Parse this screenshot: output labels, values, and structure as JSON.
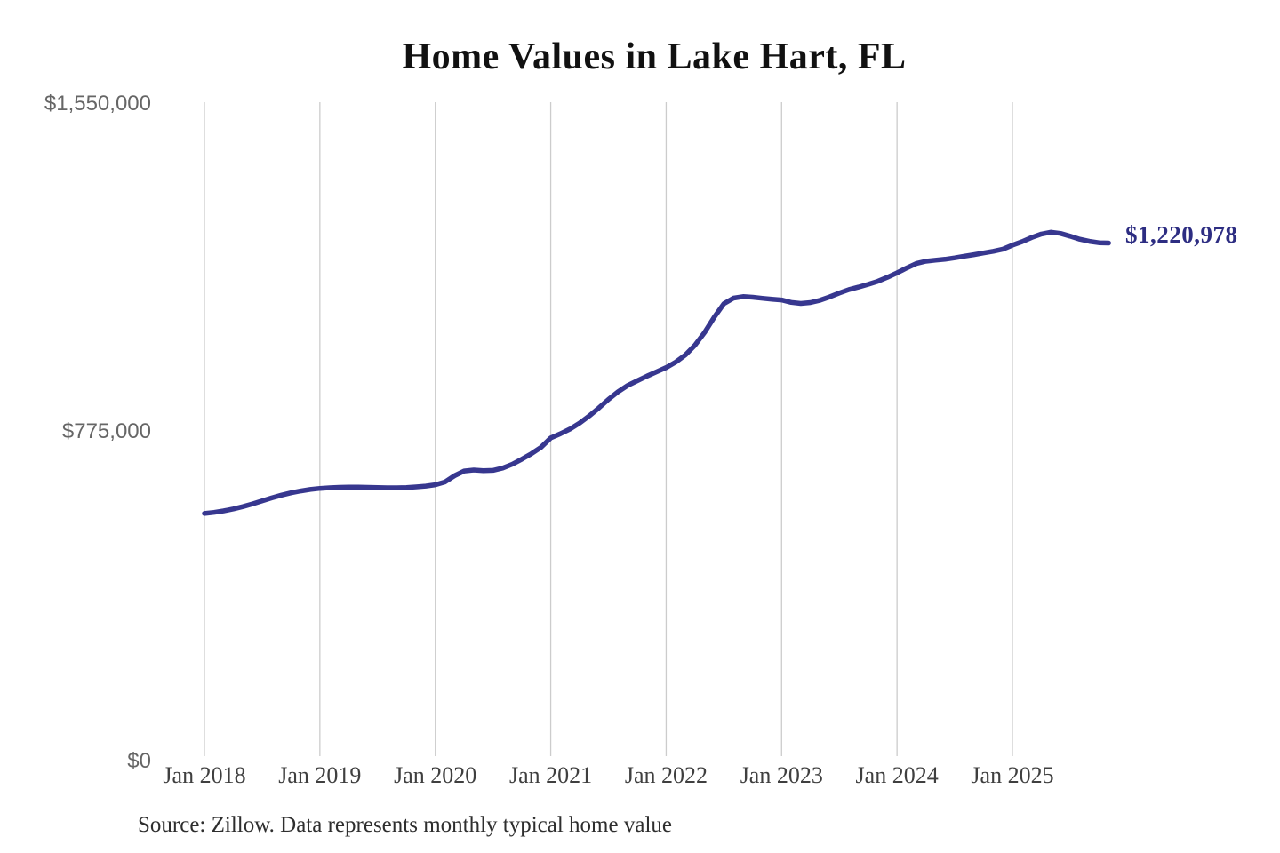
{
  "chart": {
    "title": "Home Values in Lake Hart, FL",
    "latest_value_label": "$1,220,978",
    "source_note": "Source: Zillow. Data represents monthly typical home value"
  },
  "colors": {
    "line": "#37378f",
    "latest_value_label": "#2d2d82",
    "gridline": "#cccccc",
    "y_tick_text": "#666666",
    "x_tick_text": "#3f3f3f",
    "title_text": "#111111",
    "source_text": "#2e2e2e",
    "background": "#ffffff"
  },
  "chart_data": {
    "type": "line",
    "title": "Home Values in Lake Hart, FL",
    "x_start_month": "2018-01",
    "x_end_month": "2025-11",
    "x_tick_labels": [
      "Jan 2018",
      "Jan 2019",
      "Jan 2020",
      "Jan 2021",
      "Jan 2022",
      "Jan 2023",
      "Jan 2024",
      "Jan 2025"
    ],
    "y_tick_labels": [
      "$0",
      "$775,000",
      "$1,550,000"
    ],
    "y_ticks": [
      0,
      775000,
      1550000
    ],
    "ylim": [
      0,
      1550000
    ],
    "grid": "vertical",
    "legend": "none",
    "latest_value": 1220978,
    "annotations": [
      {
        "text": "$1,220,978",
        "position": "end-of-line"
      }
    ],
    "series": [
      {
        "name": "Typical home value (USD, monthly)",
        "values": [
          583000,
          585500,
          589000,
          593500,
          599000,
          605500,
          612500,
          619500,
          626000,
          631500,
          636000,
          639500,
          642000,
          643500,
          644500,
          645000,
          645000,
          644500,
          644000,
          643500,
          643500,
          644000,
          645500,
          647500,
          650500,
          657000,
          672000,
          683000,
          685500,
          684000,
          684500,
          690000,
          699000,
          711000,
          724000,
          739000,
          761000,
          771000,
          782000,
          796000,
          813000,
          832000,
          852000,
          870000,
          885000,
          896000,
          907000,
          917000,
          927000,
          940000,
          957000,
          980000,
          1010000,
          1046000,
          1078000,
          1091000,
          1094500,
          1093000,
          1090500,
          1088500,
          1086500,
          1081000,
          1078500,
          1080500,
          1086000,
          1094000,
          1103000,
          1111000,
          1117000,
          1123500,
          1130500,
          1140000,
          1150500,
          1162000,
          1172500,
          1178000,
          1180500,
          1182500,
          1186000,
          1190000,
          1193500,
          1197500,
          1201500,
          1206500,
          1216000,
          1224000,
          1234000,
          1242000,
          1246500,
          1243500,
          1237000,
          1230000,
          1225000,
          1221500,
          1220978
        ]
      }
    ]
  }
}
